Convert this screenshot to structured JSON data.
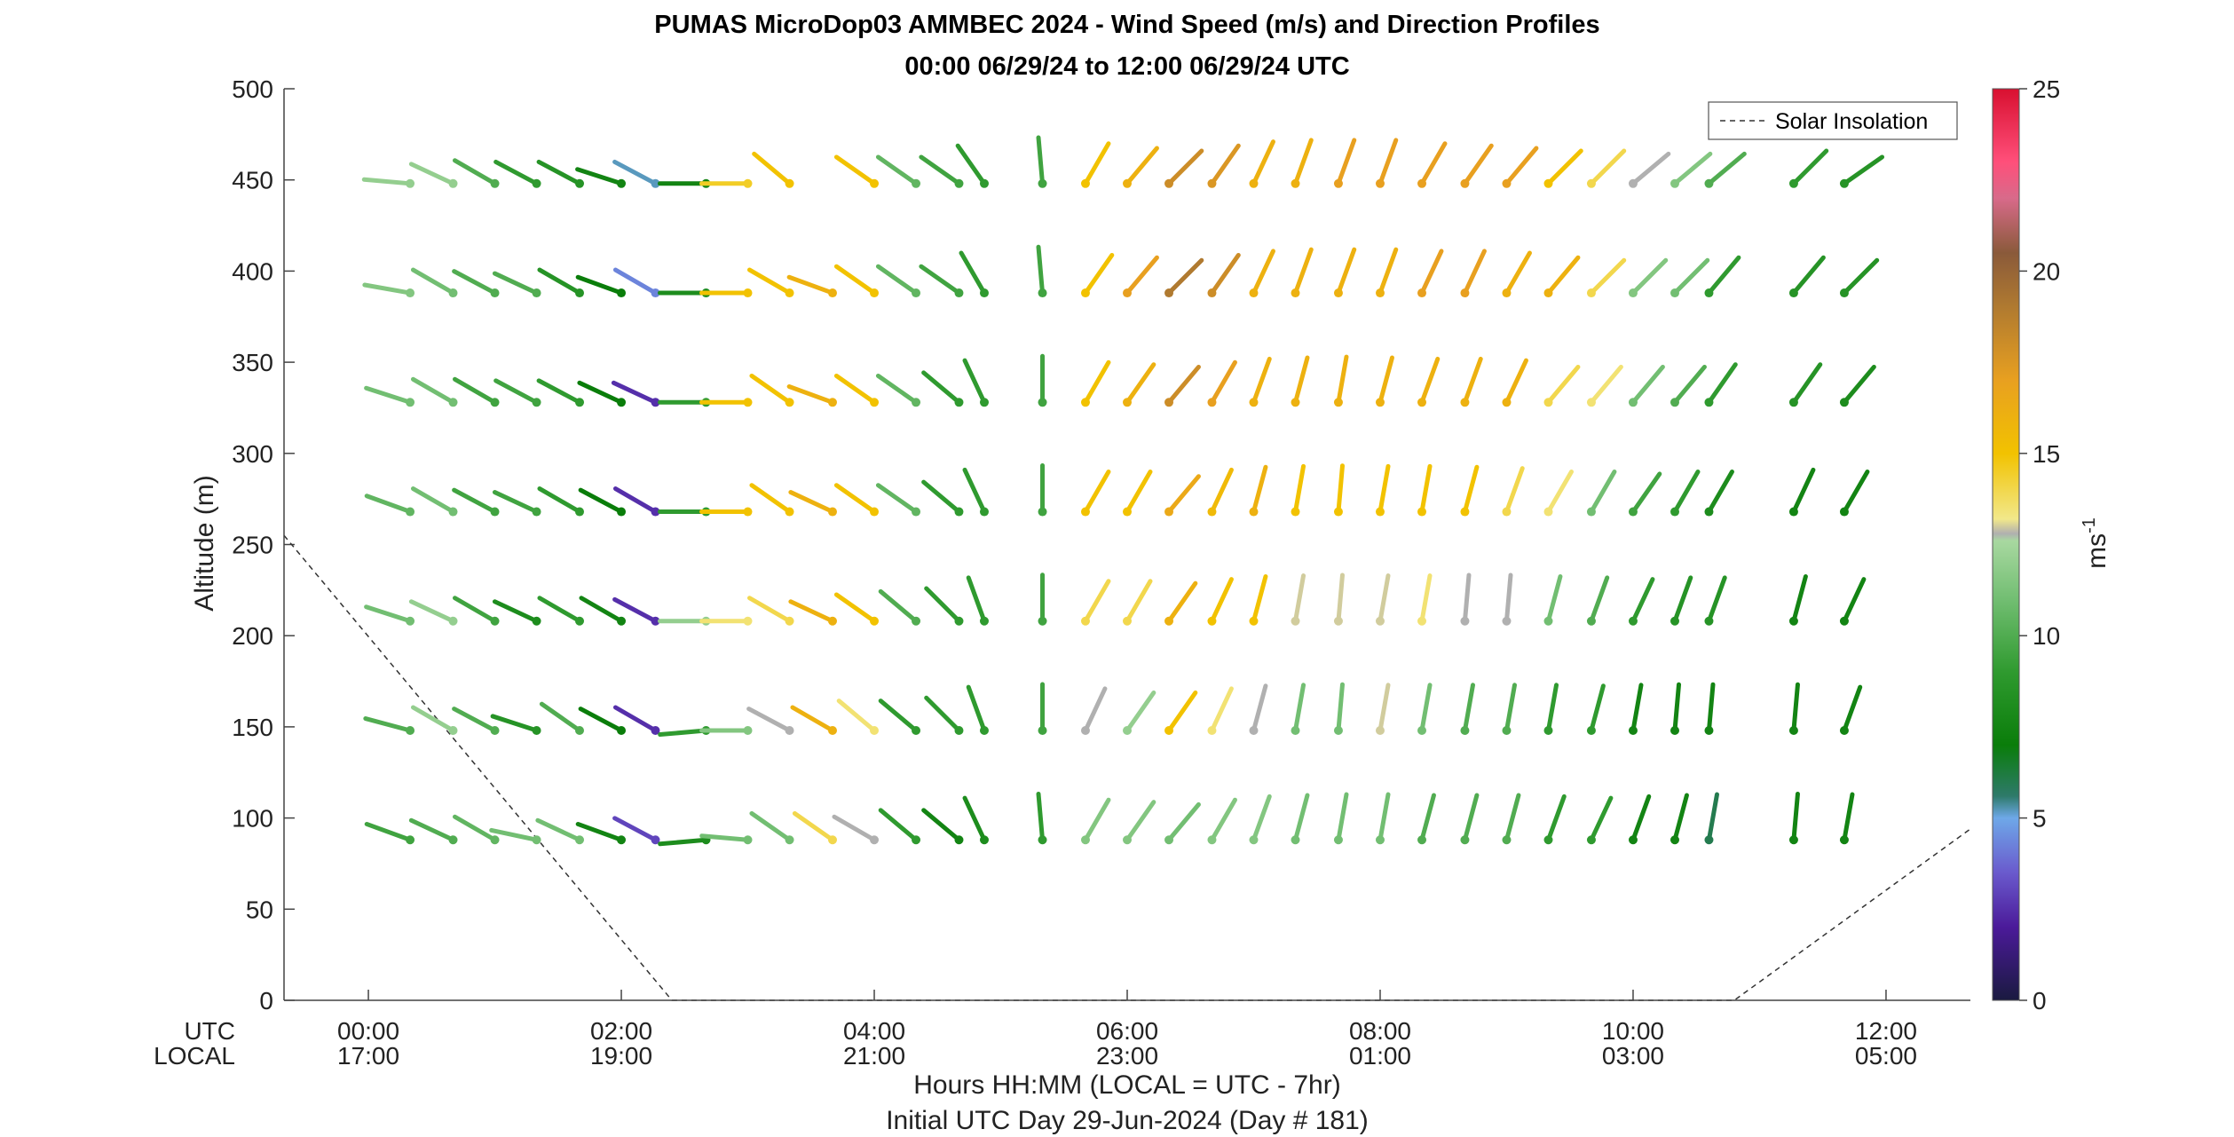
{
  "chart_data": {
    "type": "wind-barb-profile",
    "title": "PUMAS MicroDop03 AMMBEC 2024 - Wind Speed (m/s) and Direction Profiles",
    "subtitle": "00:00 06/29/24 to 12:00 06/29/24  UTC",
    "ylabel": "Altitude (m)",
    "xlabel": "Hours HH:MM  (LOCAL = UTC - 7hr)",
    "xlabel2": "Initial UTC Day 29-Jun-2024 (Day # 181)",
    "xrow_labels": {
      "utc": "UTC",
      "local": "LOCAL"
    },
    "ylim": [
      0,
      500
    ],
    "xlim_hours": [
      -0.667,
      12.667
    ],
    "yticks": [
      0,
      50,
      100,
      150,
      200,
      250,
      300,
      350,
      400,
      450,
      500
    ],
    "xticks_hours": [
      0,
      2,
      4,
      6,
      8,
      10,
      12
    ],
    "xtick_labels_utc": [
      "00:00",
      "02:00",
      "04:00",
      "06:00",
      "08:00",
      "10:00",
      "12:00"
    ],
    "xtick_labels_local": [
      "17:00",
      "19:00",
      "21:00",
      "23:00",
      "01:00",
      "03:00",
      "05:00"
    ],
    "colorbar": {
      "label": "ms",
      "label_exp": "-1",
      "range": [
        0,
        25
      ],
      "ticks": [
        0,
        5,
        10,
        15,
        20,
        25
      ],
      "stops": [
        {
          "v": 0,
          "color": "#1a1a40"
        },
        {
          "v": 2,
          "color": "#4b1a99"
        },
        {
          "v": 3.5,
          "color": "#6a5acd"
        },
        {
          "v": 5,
          "color": "#6ea8e8"
        },
        {
          "v": 5.6,
          "color": "#2e7a6a"
        },
        {
          "v": 7,
          "color": "#0a7d0a"
        },
        {
          "v": 9,
          "color": "#2f9a2f"
        },
        {
          "v": 11,
          "color": "#72be72"
        },
        {
          "v": 12.6,
          "color": "#a8d8a0"
        },
        {
          "v": 12.8,
          "color": "#b0b0b0"
        },
        {
          "v": 13.2,
          "color": "#f2e88a"
        },
        {
          "v": 15,
          "color": "#f2c200"
        },
        {
          "v": 17,
          "color": "#e8a020"
        },
        {
          "v": 19,
          "color": "#b07a30"
        },
        {
          "v": 20.5,
          "color": "#8a5a3a"
        },
        {
          "v": 22,
          "color": "#d86a8a"
        },
        {
          "v": 23,
          "color": "#ff4f7a"
        },
        {
          "v": 25,
          "color": "#d81030"
        }
      ]
    },
    "legend": {
      "label": "Solar Insolation",
      "placement": "top-right"
    },
    "solar_insolation": {
      "description": "dashed line, scaled to altitude axis",
      "points": [
        [
          -0.667,
          255
        ],
        [
          2.4,
          0
        ],
        [
          10.8,
          0
        ],
        [
          12.667,
          94
        ]
      ]
    },
    "altitudes": [
      88,
      148,
      208,
      268,
      328,
      388,
      448
    ],
    "barbs": [
      {
        "t": 0.33,
        "speeds": [
          9.5,
          10,
          11,
          10.5,
          11,
          11.5,
          12
        ],
        "dirs": [
          -70,
          -75,
          -72,
          -70,
          -72,
          -80,
          -85
        ]
      },
      {
        "t": 0.67,
        "speeds": [
          10,
          12,
          12,
          11,
          11,
          11,
          12
        ],
        "dirs": [
          -65,
          -60,
          -65,
          -60,
          -60,
          -60,
          -65
        ]
      },
      {
        "t": 1.0,
        "speeds": [
          10.5,
          10,
          9.5,
          9.5,
          9.5,
          10,
          10
        ],
        "dirs": [
          -60,
          -62,
          -60,
          -62,
          -60,
          -62,
          -60
        ]
      },
      {
        "t": 1.33,
        "speeds": [
          11,
          8.5,
          8,
          9.5,
          9.5,
          10,
          9
        ],
        "dirs": [
          -78,
          -72,
          -65,
          -65,
          -62,
          -65,
          -62
        ]
      },
      {
        "t": 1.67,
        "speeds": [
          11,
          10,
          9,
          9,
          9,
          8.5,
          8.5
        ],
        "dirs": [
          -65,
          -55,
          -60,
          -60,
          -62,
          -60,
          -62
        ]
      },
      {
        "t": 2.0,
        "speeds": [
          7.5,
          7,
          7.5,
          7,
          7,
          7,
          7.5
        ],
        "dirs": [
          -70,
          -62,
          -60,
          -62,
          -65,
          -70,
          -72
        ]
      },
      {
        "t": 2.27,
        "speeds": [
          3,
          2.5,
          2.5,
          2.5,
          2.5,
          4.3,
          5.2
        ],
        "dirs": [
          -62,
          -60,
          -62,
          -60,
          -65,
          -60,
          -62
        ]
      },
      {
        "t": 2.67,
        "speeds": [
          8,
          9,
          12,
          9,
          9,
          8,
          7.5
        ],
        "dirs": [
          -95,
          -95,
          -90,
          -90,
          -90,
          -90,
          -90
        ]
      },
      {
        "t": 3.0,
        "speeds": [
          11,
          11.5,
          13.5,
          15,
          15,
          15,
          14.5
        ],
        "dirs": [
          -85,
          -90,
          -90,
          -90,
          -90,
          -90,
          -90
        ]
      },
      {
        "t": 3.33,
        "speeds": [
          11,
          12.8,
          14,
          15,
          15,
          15,
          15
        ],
        "dirs": [
          -55,
          -62,
          -60,
          -55,
          -55,
          -60,
          -50
        ]
      },
      {
        "t": 3.67,
        "speeds": [
          14,
          16,
          16,
          16,
          16,
          16,
          16
        ],
        "dirs": [
          -55,
          -60,
          -65,
          -65,
          -70,
          -70,
          null
        ]
      },
      {
        "t": 4.0,
        "speeds": [
          12.8,
          13.5,
          15,
          15,
          15,
          15,
          15
        ],
        "dirs": [
          -60,
          -50,
          -55,
          -55,
          -55,
          -55,
          -55
        ]
      },
      {
        "t": 4.33,
        "speeds": [
          9,
          9,
          10,
          10.5,
          10.5,
          10.5,
          10.5
        ],
        "dirs": [
          -50,
          -50,
          -50,
          -55,
          -55,
          -55,
          -55
        ]
      },
      {
        "t": 4.67,
        "speeds": [
          7.5,
          9,
          9,
          9,
          9,
          9.5,
          9.5
        ],
        "dirs": [
          -50,
          -45,
          -45,
          -50,
          -50,
          -55,
          -55
        ]
      },
      {
        "t": 4.87,
        "speeds": [
          8,
          9,
          9,
          9,
          9,
          9,
          9
        ],
        "dirs": [
          -25,
          -20,
          -20,
          -25,
          -25,
          -30,
          -35
        ]
      },
      {
        "t": 5.33,
        "speeds": [
          9,
          9.5,
          9.5,
          9.5,
          9.5,
          9.5,
          9.5
        ],
        "dirs": [
          -5,
          0,
          0,
          0,
          0,
          -5,
          -5
        ]
      },
      {
        "t": 5.67,
        "speeds": [
          11.5,
          12.8,
          14,
          15,
          15,
          15,
          15
        ],
        "dirs": [
          30,
          25,
          30,
          30,
          30,
          35,
          30
        ]
      },
      {
        "t": 6.0,
        "speeds": [
          11.5,
          12,
          14,
          15,
          16,
          17,
          16
        ],
        "dirs": [
          35,
          35,
          30,
          30,
          35,
          40,
          40
        ]
      },
      {
        "t": 6.33,
        "speeds": [
          11,
          15,
          16,
          16.5,
          18,
          19,
          18
        ],
        "dirs": [
          40,
          35,
          35,
          40,
          40,
          45,
          45
        ]
      },
      {
        "t": 6.67,
        "speeds": [
          11.5,
          13.5,
          15,
          15.5,
          17,
          18,
          17.5
        ],
        "dirs": [
          30,
          25,
          25,
          25,
          30,
          35,
          35
        ]
      },
      {
        "t": 7.0,
        "speeds": [
          11.5,
          12.8,
          15,
          16,
          16,
          16,
          16
        ],
        "dirs": [
          20,
          15,
          15,
          15,
          20,
          25,
          25
        ]
      },
      {
        "t": 7.33,
        "speeds": [
          11,
          11,
          13,
          15,
          16,
          16,
          16
        ],
        "dirs": [
          15,
          10,
          10,
          10,
          15,
          20,
          20
        ]
      },
      {
        "t": 7.67,
        "speeds": [
          11,
          11,
          13,
          15,
          16,
          16,
          17
        ],
        "dirs": [
          10,
          5,
          5,
          5,
          10,
          20,
          20
        ]
      },
      {
        "t": 8.0,
        "speeds": [
          11,
          13,
          13,
          15,
          16,
          16,
          17
        ],
        "dirs": [
          10,
          10,
          10,
          10,
          15,
          20,
          20
        ]
      },
      {
        "t": 8.33,
        "speeds": [
          10,
          11,
          13.5,
          15,
          16,
          17,
          17
        ],
        "dirs": [
          15,
          10,
          10,
          10,
          20,
          25,
          30
        ]
      },
      {
        "t": 8.67,
        "speeds": [
          10,
          10,
          12.8,
          15,
          16,
          17,
          17
        ],
        "dirs": [
          15,
          10,
          5,
          15,
          20,
          25,
          35
        ]
      },
      {
        "t": 9.0,
        "speeds": [
          10,
          10,
          12.8,
          14,
          16,
          16,
          17
        ],
        "dirs": [
          15,
          10,
          5,
          20,
          25,
          30,
          40
        ]
      },
      {
        "t": 9.33,
        "speeds": [
          9,
          9,
          11,
          13.5,
          14,
          16,
          15
        ],
        "dirs": [
          20,
          10,
          15,
          30,
          40,
          40,
          45
        ]
      },
      {
        "t": 9.67,
        "speeds": [
          9,
          9,
          10,
          11,
          13.5,
          14,
          14
        ],
        "dirs": [
          25,
          15,
          20,
          30,
          40,
          45,
          45
        ]
      },
      {
        "t": 10.0,
        "speeds": [
          7.5,
          7.5,
          9,
          9.5,
          11,
          11.5,
          12.8
        ],
        "dirs": [
          20,
          10,
          25,
          35,
          40,
          45,
          50
        ]
      },
      {
        "t": 10.33,
        "speeds": [
          7.5,
          7.5,
          8.5,
          9,
          10,
          11,
          11.5
        ],
        "dirs": [
          15,
          5,
          20,
          30,
          40,
          45,
          50
        ]
      },
      {
        "t": 10.6,
        "speeds": [
          6,
          7.5,
          8.5,
          8,
          9,
          9,
          10
        ],
        "dirs": [
          10,
          5,
          20,
          30,
          35,
          40,
          50
        ]
      },
      {
        "t": 11.27,
        "speeds": [
          7.5,
          7.5,
          7.5,
          7.5,
          8.5,
          8.5,
          9
        ],
        "dirs": [
          5,
          5,
          15,
          25,
          35,
          40,
          45
        ]
      },
      {
        "t": 11.67,
        "speeds": [
          7.5,
          7.5,
          7.5,
          7.5,
          8,
          8.5,
          8.5
        ],
        "dirs": [
          10,
          20,
          25,
          30,
          40,
          45,
          55
        ]
      }
    ]
  }
}
